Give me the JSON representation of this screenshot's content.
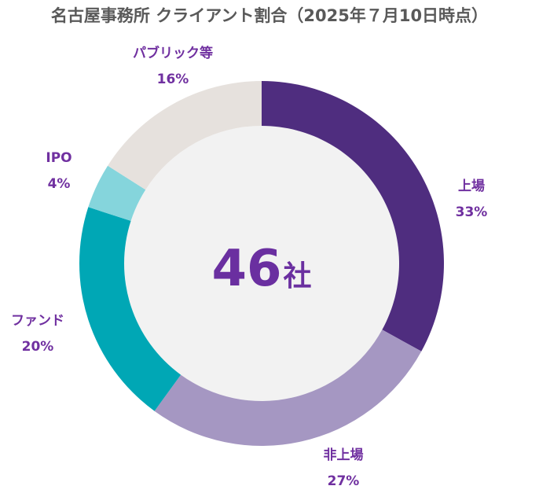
{
  "chart_data": {
    "type": "pie",
    "title": "名古屋事務所 クライアント割合（2025年７月10日時点）",
    "center_value": "46",
    "center_unit": "社",
    "slices": [
      {
        "label": "上場",
        "value": 33,
        "value_label": "33%",
        "color": "#4f2d7f"
      },
      {
        "label": "非上場",
        "value": 27,
        "value_label": "27%",
        "color": "#a597c2"
      },
      {
        "label": "ファンド",
        "value": 20,
        "value_label": "20%",
        "color": "#00a7b5"
      },
      {
        "label": "IPO",
        "value": 4,
        "value_label": "4%",
        "color": "#85d5dc"
      },
      {
        "label": "パブリック等",
        "value": 16,
        "value_label": "16%",
        "color": "#e6e1dd"
      }
    ]
  }
}
